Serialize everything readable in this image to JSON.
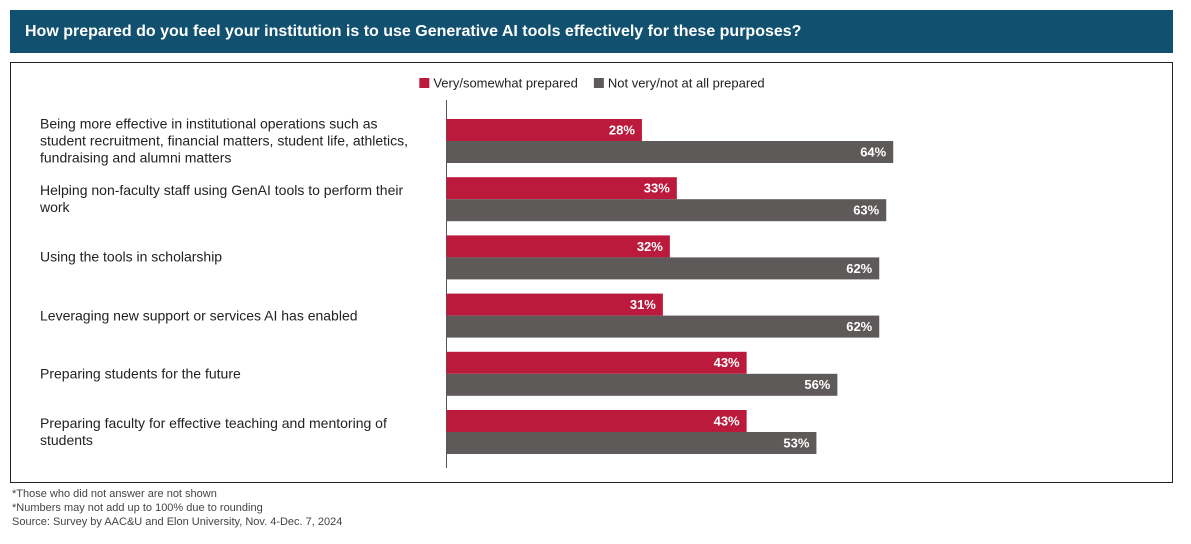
{
  "chart_data": {
    "type": "bar",
    "orientation": "horizontal",
    "title": "How prepared do you feel your institution is to use Generative AI tools effectively for these purposes?",
    "categories": [
      "Being more effective in institutional operations such as student recruitment, financial matters, student life, athletics, fundraising and alumni matters",
      "Helping non-faculty staff using GenAI tools to perform their work",
      "Using the tools in scholarship",
      "Leveraging new support or services AI has enabled",
      "Preparing students for the future",
      "Preparing faculty for effective teaching and mentoring of students"
    ],
    "series": [
      {
        "name": "Very/somewhat prepared",
        "color": "#bc1a3c",
        "values": [
          28,
          33,
          32,
          31,
          43,
          43
        ],
        "value_labels": [
          "28%",
          "33%",
          "32%",
          "31%",
          "43%",
          "43%"
        ]
      },
      {
        "name": "Not very/not at all prepared",
        "color": "#5e5a59",
        "values": [
          64,
          63,
          62,
          62,
          56,
          53
        ],
        "value_labels": [
          "64%",
          "63%",
          "62%",
          "62%",
          "56%",
          "53%"
        ]
      }
    ],
    "legend": "top"
  },
  "notes": [
    "*Those who did not answer are not shown",
    "*Numbers may not add up to 100% due to rounding",
    "Source: Survey by AAC&U and Elon University, Nov. 4-Dec. 7, 2024"
  ]
}
